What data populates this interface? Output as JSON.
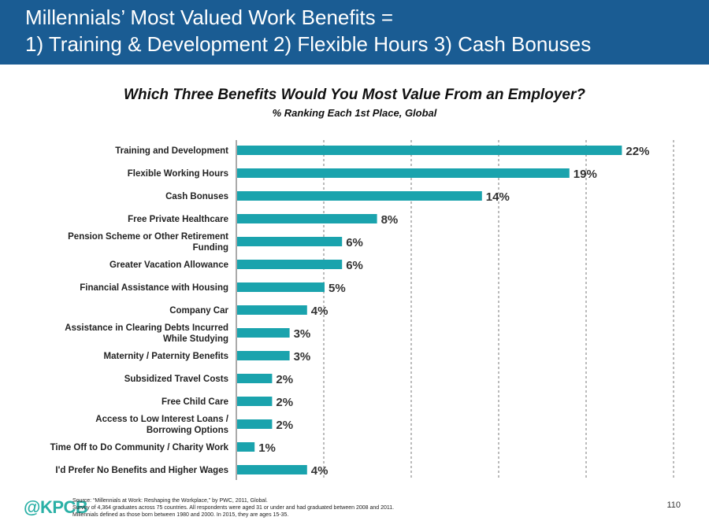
{
  "header": {
    "line1": "Millennials’ Most Valued Work Benefits =",
    "line2": "1) Training & Development  2) Flexible Hours  3) Cash Bonuses"
  },
  "chart_data": {
    "type": "bar",
    "orientation": "horizontal",
    "title": "Which Three Benefits Would You Most Value From an Employer?",
    "subtitle": "% Ranking Each 1st Place, Global",
    "categories": [
      [
        "Training and Development"
      ],
      [
        "Flexible Working Hours"
      ],
      [
        "Cash Bonuses"
      ],
      [
        "Free Private Healthcare"
      ],
      [
        "Pension Scheme or Other Retirement",
        "Funding"
      ],
      [
        "Greater Vacation Allowance"
      ],
      [
        "Financial Assistance with Housing"
      ],
      [
        "Company Car"
      ],
      [
        "Assistance in Clearing Debts Incurred",
        "While Studying"
      ],
      [
        "Maternity / Paternity Benefits"
      ],
      [
        "Subsidized Travel Costs"
      ],
      [
        "Free Child Care"
      ],
      [
        "Access to Low Interest Loans /",
        "Borrowing Options"
      ],
      [
        "Time Off to Do Community / Charity Work"
      ],
      [
        "I'd Prefer No Benefits and Higher Wages"
      ]
    ],
    "values": [
      22,
      19,
      14,
      8,
      6,
      6,
      5,
      4,
      3,
      3,
      2,
      2,
      2,
      1,
      4
    ],
    "value_labels": [
      "22%",
      "19%",
      "14%",
      "8%",
      "6%",
      "6%",
      "5%",
      "4%",
      "3%",
      "3%",
      "2%",
      "2%",
      "2%",
      "1%",
      "4%"
    ],
    "xlim": [
      0,
      25
    ],
    "grid": "vertical dashed",
    "bar_color": "#1aa3ad"
  },
  "footer": {
    "logo": "@KPCB",
    "source_lines": [
      "Source: “Millennials at Work: Reshaping the Workplace,” by PWC, 2011, Global.",
      "Survey of 4,364 graduates across 75 countries. All respondents were aged 31 or under and had graduated between 2008 and 2011.",
      "Millennials defined as those born between 1980 and 2000. In 2015, they are ages 15-35."
    ],
    "page_number": "110"
  }
}
